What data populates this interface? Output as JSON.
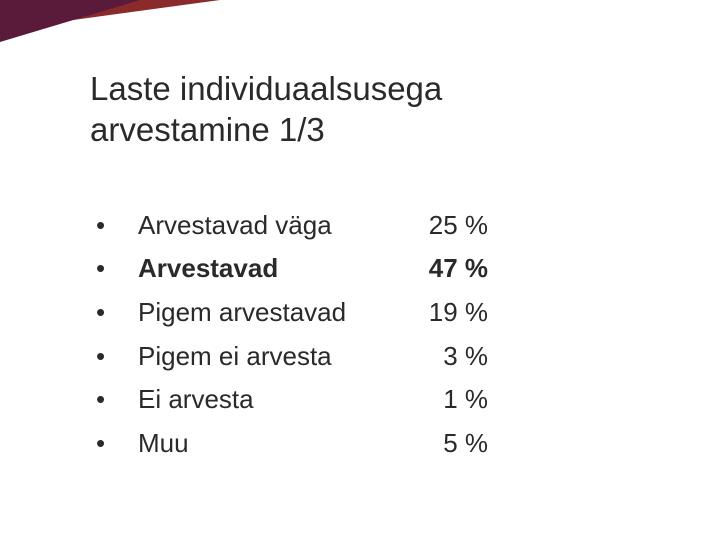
{
  "title_line1": "Laste individuaalsusega",
  "title_line2": "arvestamine 1/3",
  "colors": {
    "bg": "#ffffff",
    "text": "#2a2a2a",
    "triangle_dark": "#5a1a3a",
    "triangle_red": "#8b2a2a"
  },
  "items": [
    {
      "label": "Arvestavad väga",
      "value": "25 %",
      "bold": false
    },
    {
      "label": "Arvestavad",
      "value": "47 %",
      "bold": true
    },
    {
      "label": "Pigem arvestavad",
      "value": "19 %",
      "bold": false
    },
    {
      "label": "Pigem ei arvesta",
      "value": "3 %",
      "bold": false,
      "pad": true
    },
    {
      "label": "Ei arvesta",
      "value": "1 %",
      "bold": false,
      "pad": true
    },
    {
      "label": "Muu",
      "value": "5 %",
      "bold": false,
      "pad": true
    }
  ]
}
